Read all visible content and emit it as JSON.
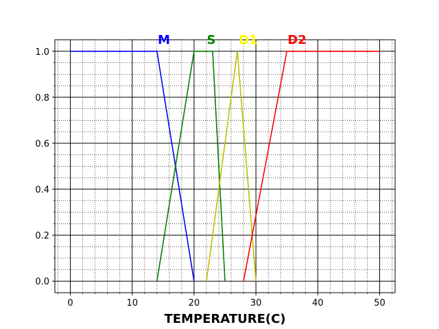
{
  "chart_data": {
    "type": "line",
    "title": "",
    "xlabel": "TEMPERATURE(C)",
    "ylabel": "",
    "xlim": [
      -2.5,
      52.5
    ],
    "ylim": [
      -0.05,
      1.05
    ],
    "xticks": [
      0,
      10,
      20,
      30,
      40,
      50
    ],
    "yticks": [
      0.0,
      0.2,
      0.4,
      0.6,
      0.8,
      1.0
    ],
    "xtick_labels": [
      "0",
      "10",
      "20",
      "30",
      "40",
      "50"
    ],
    "ytick_labels": [
      "0.0",
      "0.2",
      "0.4",
      "0.6",
      "0.8",
      "1.0"
    ],
    "grid": {
      "major": "solid",
      "minor": "dotted"
    },
    "legend": "none",
    "series": [
      {
        "name": "M",
        "color": "#0000ff",
        "x": [
          0,
          14,
          20
        ],
        "y": [
          1,
          1,
          0
        ]
      },
      {
        "name": "S",
        "color": "#008000",
        "x": [
          14,
          20,
          23,
          25
        ],
        "y": [
          0,
          1,
          1,
          0
        ]
      },
      {
        "name": "D1",
        "color": "#bfbf00",
        "x": [
          22,
          27,
          30
        ],
        "y": [
          0,
          1,
          0
        ]
      },
      {
        "name": "D2",
        "color": "#ff0000",
        "x": [
          28,
          35,
          50
        ],
        "y": [
          0,
          1,
          1
        ]
      }
    ],
    "label_colors": {
      "M": "#0000ff",
      "S": "#008000",
      "D1": "#ffff00",
      "D2": "#ff0000"
    }
  }
}
